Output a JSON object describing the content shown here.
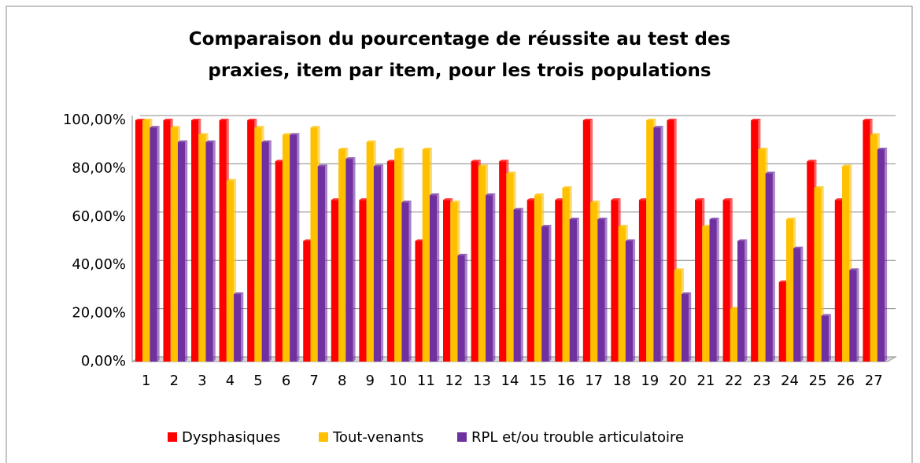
{
  "chart_data": {
    "type": "bar",
    "title": "Comparaison du pourcentage de réussite au test des praxies, item par item, pour les trois populations",
    "categories": [
      "1",
      "2",
      "3",
      "4",
      "5",
      "6",
      "7",
      "8",
      "9",
      "10",
      "11",
      "12",
      "13",
      "14",
      "15",
      "16",
      "17",
      "18",
      "19",
      "20",
      "21",
      "22",
      "23",
      "24",
      "25",
      "26",
      "27"
    ],
    "series": [
      {
        "name": "Dysphasiques",
        "color": "#ff0000",
        "values": [
          100,
          100,
          100,
          100,
          100,
          83,
          50,
          67,
          67,
          83,
          50,
          67,
          83,
          83,
          67,
          67,
          100,
          67,
          67,
          100,
          67,
          67,
          100,
          33,
          83,
          67,
          100
        ]
      },
      {
        "name": "Tout-venants",
        "color": "#ffc000",
        "values": [
          100,
          97,
          94,
          75,
          97,
          94,
          97,
          88,
          91,
          88,
          88,
          66,
          81,
          78,
          69,
          72,
          66,
          56,
          100,
          38,
          56,
          22,
          88,
          59,
          72,
          81,
          94
        ]
      },
      {
        "name": "RPL et/ou trouble articulatoire",
        "color": "#7030a0",
        "values": [
          97,
          91,
          91,
          28,
          91,
          94,
          81,
          84,
          81,
          66,
          69,
          44,
          69,
          63,
          56,
          59,
          59,
          50,
          97,
          28,
          59,
          50,
          78,
          47,
          19,
          38,
          88
        ]
      }
    ],
    "ylim": [
      0,
      100
    ],
    "yticks": [
      {
        "value": 0,
        "label": "0,00%"
      },
      {
        "value": 20,
        "label": "20,00%"
      },
      {
        "value": 40,
        "label": "40,00%"
      },
      {
        "value": 60,
        "label": "60,00%"
      },
      {
        "value": 80,
        "label": "80,00%"
      },
      {
        "value": 100,
        "label": "100,00%"
      }
    ],
    "grid": true,
    "legend": "bottom"
  }
}
